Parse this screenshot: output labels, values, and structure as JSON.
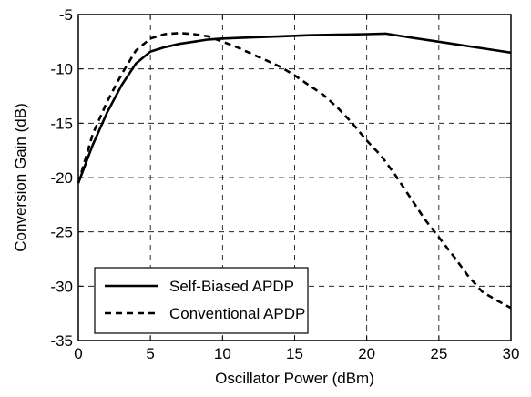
{
  "chart_data": {
    "type": "line",
    "xlabel": "Oscillator Power (dBm)",
    "ylabel": "Conversion Gain (dB)",
    "xlim": [
      0,
      30
    ],
    "ylim": [
      -35,
      -5
    ],
    "xticks": [
      0,
      5,
      10,
      15,
      20,
      25,
      30
    ],
    "yticks": [
      -35,
      -30,
      -25,
      -20,
      -15,
      -10,
      -5
    ],
    "grid": true,
    "legend_position": "bottom-left",
    "series": [
      {
        "name": "Self-Biased APDP",
        "style": "solid",
        "color": "#000000",
        "x": [
          0,
          1,
          2,
          3,
          4,
          5,
          6,
          7,
          8,
          9,
          10,
          12,
          14,
          16,
          18,
          20,
          21.3,
          23,
          25,
          27,
          29,
          30
        ],
        "y": [
          -20.5,
          -17.0,
          -14.0,
          -11.5,
          -9.5,
          -8.4,
          -8.0,
          -7.7,
          -7.5,
          -7.3,
          -7.2,
          -7.1,
          -7.0,
          -6.9,
          -6.85,
          -6.8,
          -6.75,
          -7.1,
          -7.5,
          -7.9,
          -8.3,
          -8.5
        ]
      },
      {
        "name": "Conventional APDP",
        "style": "dashed",
        "color": "#000000",
        "x": [
          0,
          1,
          2,
          3,
          4,
          5,
          6,
          7,
          8,
          9,
          10,
          11,
          12,
          13,
          14,
          15,
          16,
          17,
          18,
          19,
          20,
          21,
          22,
          23,
          24,
          25,
          26,
          27,
          28,
          29,
          30
        ],
        "y": [
          -20.5,
          -16.0,
          -13.0,
          -10.5,
          -8.3,
          -7.2,
          -6.8,
          -6.7,
          -6.8,
          -7.0,
          -7.5,
          -8.0,
          -8.6,
          -9.2,
          -9.8,
          -10.6,
          -11.5,
          -12.4,
          -13.6,
          -15.0,
          -16.6,
          -18.0,
          -19.8,
          -21.8,
          -23.8,
          -25.5,
          -27.2,
          -29.0,
          -30.5,
          -31.3,
          -32.0
        ]
      }
    ]
  }
}
